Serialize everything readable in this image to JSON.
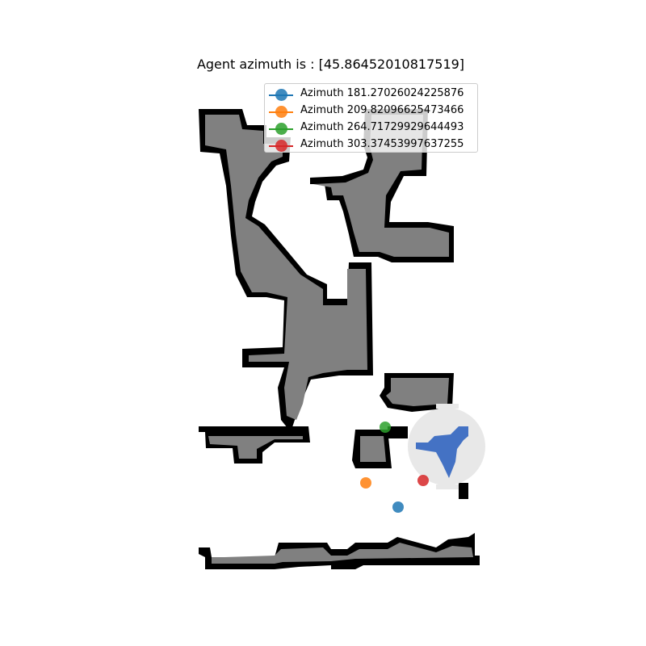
{
  "title": "Agent azimuth is : [45.86452010817519]",
  "chart_data": {
    "type": "scatter",
    "title": "Agent azimuth is : [45.86452010817519]",
    "legend_position": "upper-right",
    "axes_visible": false,
    "series": [
      {
        "name": "Azimuth 181.27026024225876",
        "color": "#1f77b4"
      },
      {
        "name": "Azimuth 209.82096625473466",
        "color": "#ff7f0e"
      },
      {
        "name": "Azimuth 264.71729929644493",
        "color": "#2ca02c"
      },
      {
        "name": "Azimuth 303.37453997637255",
        "color": "#d62728"
      }
    ],
    "agent": {
      "azimuth": 45.86452010817519,
      "color": "#4472c4",
      "view_color": "#e8e8e8"
    },
    "map_colors": {
      "free": "#ffffff",
      "explored": "#808080",
      "obstacle": "#000000"
    }
  }
}
